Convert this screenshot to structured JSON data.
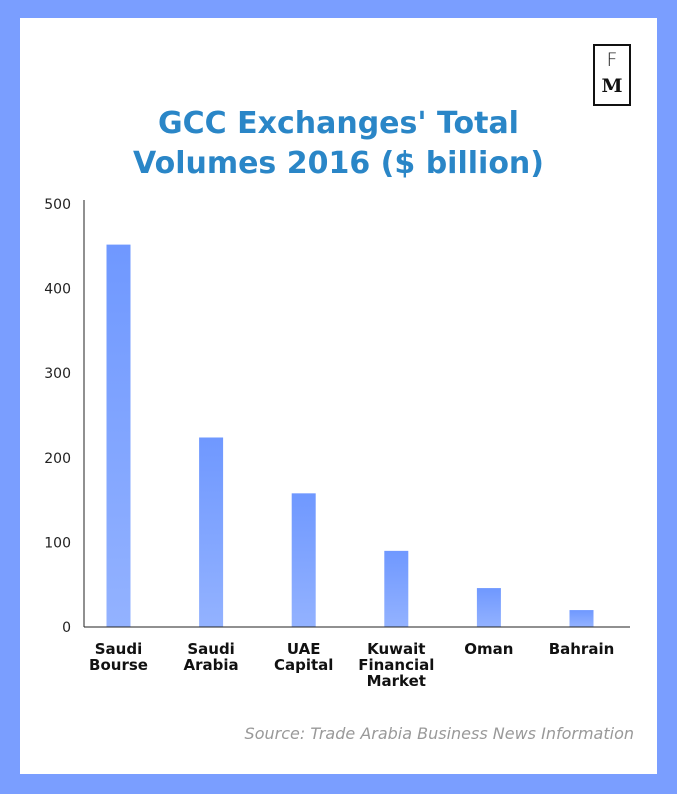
{
  "logo": {
    "top_letter": "F",
    "bottom_letter": "M"
  },
  "title_lines": [
    "GCC Exchanges' Total",
    "Volumes 2016 ($ billion)"
  ],
  "source": "Source: Trade Arabia Business News Information",
  "colors": {
    "background": "#7a9eff",
    "card": "#ffffff",
    "title": "#2a86c7",
    "bar_top": "#6f98ff",
    "bar_bottom": "#93b2ff",
    "axis": "#222222",
    "source": "#999999"
  },
  "chart_data": {
    "type": "bar",
    "title": "GCC Exchanges' Total Volumes 2016 ($ billion)",
    "xlabel": "",
    "ylabel": "",
    "ylim": [
      0,
      500
    ],
    "yticks": [
      "0",
      "100",
      "200",
      "300",
      "400",
      "500"
    ],
    "grid": false,
    "categories": [
      [
        "Saudi",
        "Bourse"
      ],
      [
        "Saudi",
        "Arabia"
      ],
      [
        "UAE",
        "Capital"
      ],
      [
        "Kuwait",
        "Financial",
        "Market"
      ],
      [
        "Oman"
      ],
      [
        "Bahrain"
      ]
    ],
    "values": [
      452,
      224,
      158,
      90,
      46,
      20
    ]
  }
}
